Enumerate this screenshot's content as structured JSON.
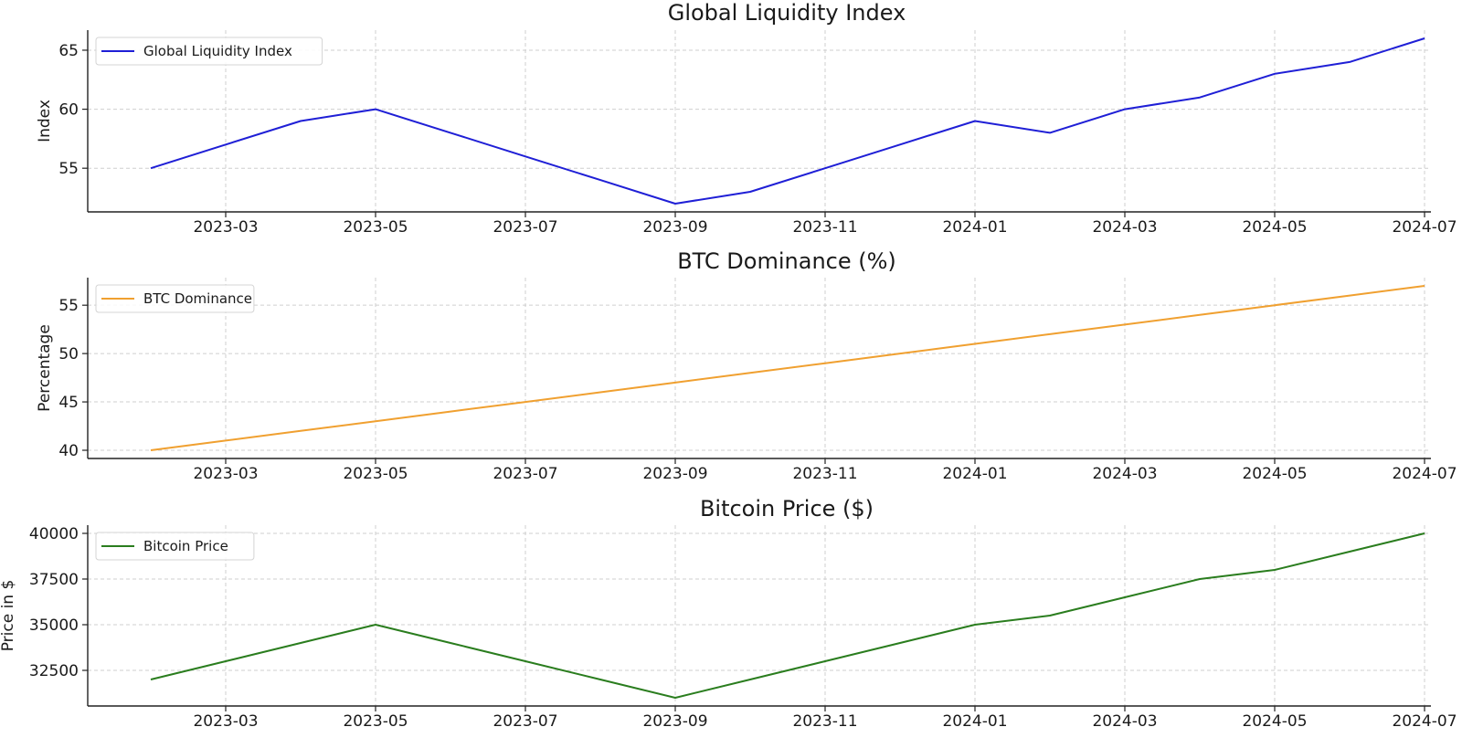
{
  "chart_data": [
    {
      "type": "line",
      "title": "Global Liquidity Index",
      "xlabel": "",
      "ylabel": "Index",
      "x": [
        "2023-02",
        "2023-03",
        "2023-04",
        "2023-05",
        "2023-06",
        "2023-07",
        "2023-08",
        "2023-09",
        "2023-10",
        "2023-11",
        "2023-12",
        "2024-01",
        "2024-02",
        "2024-03",
        "2024-04",
        "2024-05",
        "2024-06",
        "2024-07"
      ],
      "series": [
        {
          "name": "Global Liquidity Index",
          "color": "#1f1fd6",
          "values": [
            55,
            57,
            59,
            60,
            58,
            56,
            54,
            52,
            53,
            55,
            57,
            59,
            58,
            60,
            61,
            63,
            64,
            66
          ]
        }
      ],
      "ylim": [
        51.3,
        66.7
      ],
      "yticks": [
        55,
        60,
        65
      ],
      "ytick_labels": [
        "55",
        "60",
        "65"
      ],
      "xtick_labels": [
        "2023-03",
        "2023-05",
        "2023-07",
        "2023-09",
        "2023-11",
        "2024-01",
        "2024-03",
        "2024-05",
        "2024-07"
      ],
      "legend": "top-left",
      "grid": true
    },
    {
      "type": "line",
      "title": "BTC Dominance (%)",
      "xlabel": "",
      "ylabel": "Percentage",
      "x": [
        "2023-02",
        "2023-03",
        "2023-04",
        "2023-05",
        "2023-06",
        "2023-07",
        "2023-08",
        "2023-09",
        "2023-10",
        "2023-11",
        "2023-12",
        "2024-01",
        "2024-02",
        "2024-03",
        "2024-04",
        "2024-05",
        "2024-06",
        "2024-07"
      ],
      "series": [
        {
          "name": "BTC Dominance",
          "color": "#f0a030",
          "values": [
            40,
            41,
            42,
            43,
            44,
            45,
            46,
            47,
            48,
            49,
            50,
            51,
            52,
            53,
            54,
            55,
            56,
            57
          ]
        }
      ],
      "ylim": [
        39.15,
        57.85
      ],
      "yticks": [
        40,
        45,
        50,
        55
      ],
      "ytick_labels": [
        "40",
        "45",
        "50",
        "55"
      ],
      "xtick_labels": [
        "2023-03",
        "2023-05",
        "2023-07",
        "2023-09",
        "2023-11",
        "2024-01",
        "2024-03",
        "2024-05",
        "2024-07"
      ],
      "legend": "top-left",
      "grid": true
    },
    {
      "type": "line",
      "title": "Bitcoin Price ($)",
      "xlabel": "",
      "ylabel": "Price in $",
      "x": [
        "2023-02",
        "2023-03",
        "2023-04",
        "2023-05",
        "2023-06",
        "2023-07",
        "2023-08",
        "2023-09",
        "2023-10",
        "2023-11",
        "2023-12",
        "2024-01",
        "2024-02",
        "2024-03",
        "2024-04",
        "2024-05",
        "2024-06",
        "2024-07"
      ],
      "series": [
        {
          "name": "Bitcoin Price",
          "color": "#2a7d1e",
          "values": [
            32000,
            33000,
            34000,
            35000,
            34000,
            33000,
            32000,
            31000,
            32000,
            33000,
            34000,
            35000,
            35500,
            36500,
            37500,
            38000,
            39000,
            40000
          ]
        }
      ],
      "ylim": [
        30550,
        40450
      ],
      "yticks": [
        32500,
        35000,
        37500,
        40000
      ],
      "ytick_labels": [
        "32500",
        "35000",
        "37500",
        "40000"
      ],
      "xtick_labels": [
        "2023-03",
        "2023-05",
        "2023-07",
        "2023-09",
        "2023-11",
        "2024-01",
        "2024-03",
        "2024-05",
        "2024-07"
      ],
      "legend": "top-left",
      "grid": true
    }
  ]
}
